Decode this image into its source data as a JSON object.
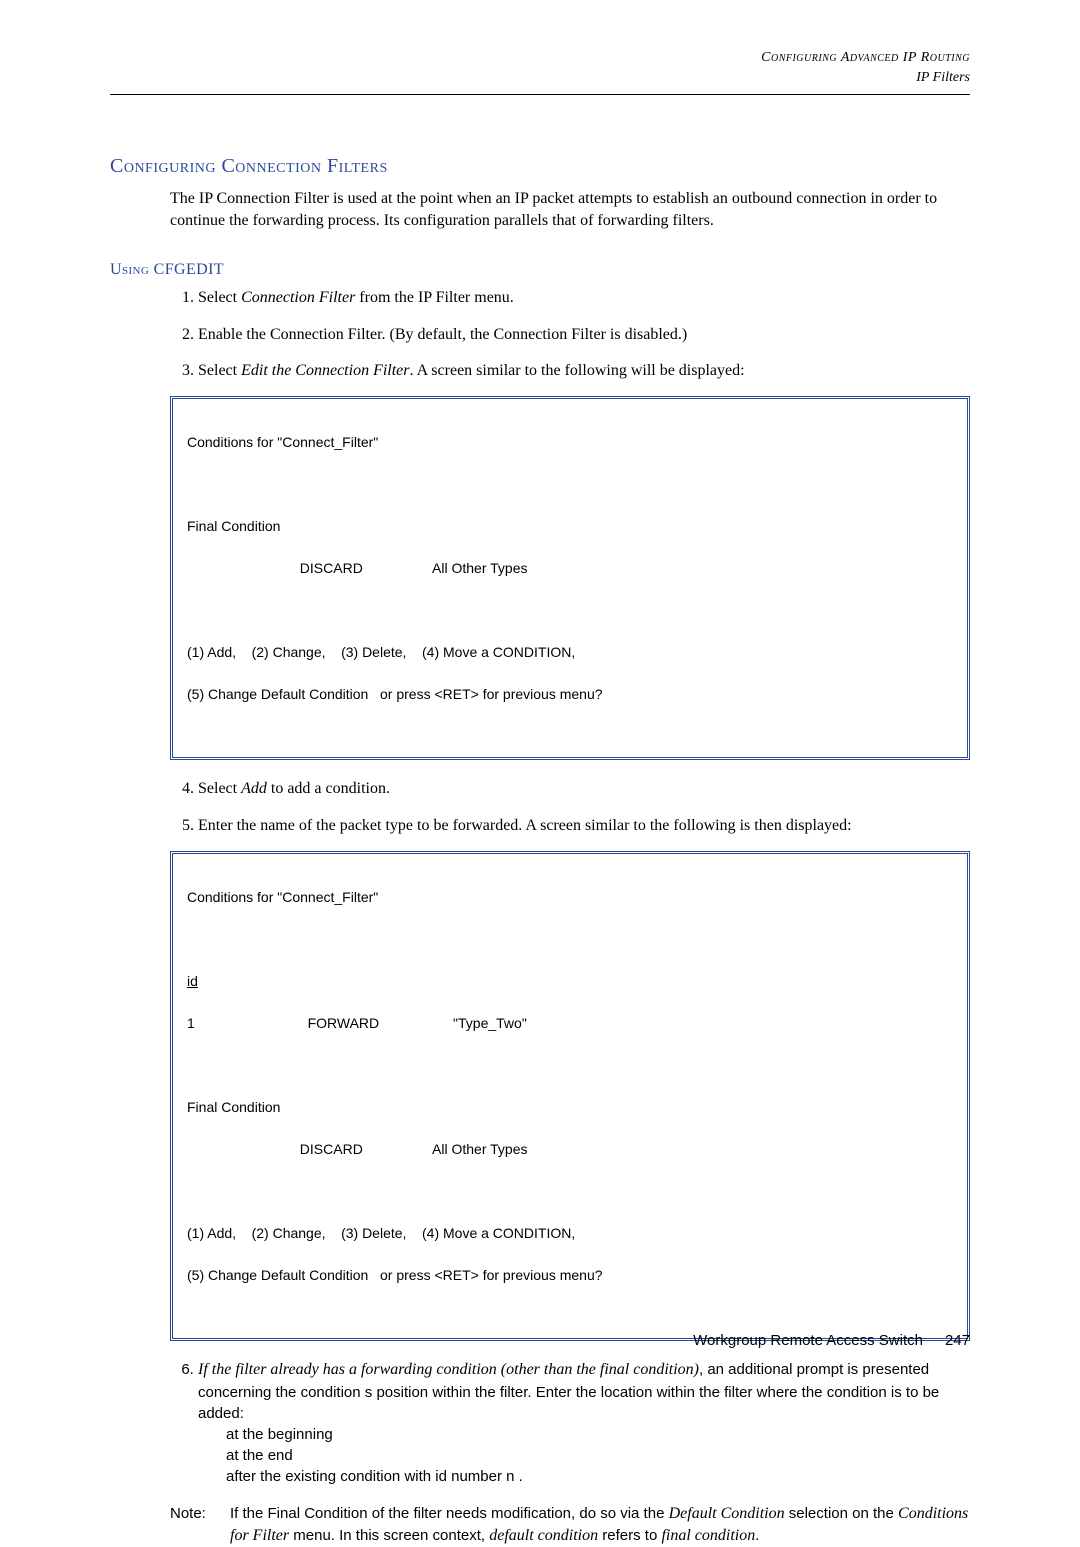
{
  "header": {
    "line1": "Configuring Advanced IP Routing",
    "line2": "IP Filters"
  },
  "section_title": "Configuring Connection Filters",
  "intro": "The IP Connection Filter is used at the point when an IP packet attempts to establish an outbound connection in order to continue the forwarding process. Its configuration parallels that of forwarding filters.",
  "subsection_title": "Using CFGEDIT",
  "steps": {
    "s1_pre": "Select ",
    "s1_it": "Connection Filter",
    "s1_post": " from the IP Filter menu.",
    "s2": "Enable the Connection Filter. (By default, the Connection Filter is disabled.)",
    "s3_pre": "Select ",
    "s3_it": "Edit the Connection Filter",
    "s3_post": ". A screen similar to the following will be displayed:",
    "s4_pre": "Select ",
    "s4_it": "Add",
    "s4_post": " to add a condition.",
    "s5": "Enter the name of the packet type to be forwarded. A screen similar to the following is then displayed:",
    "s6_lead": "If the filter already has a forwarding condition (other than the final condition)",
    "s6_rest1": ", an additional prompt is presented concerning the condition s position within the filter. Enter the location within the filter where the condition is to be added:",
    "s6_opt1": "at the beginning",
    "s6_opt2": "at the end",
    "s6_opt3": "after the existing condition with id number  n ."
  },
  "terminal1": {
    "title": "Conditions for \"Connect_Filter\"",
    "final_label": "Final Condition",
    "final_row": "                             DISCARD                  All Other Types",
    "menu1": "(1) Add,    (2) Change,    (3) Delete,    (4) Move a CONDITION,",
    "menu2": "(5) Change Default Condition   or press <RET> for previous menu?"
  },
  "terminal2": {
    "title": "Conditions for \"Connect_Filter\"",
    "id_hdr": "id",
    "row1": "1                             FORWARD                   \"Type_Two\"",
    "final_label": "Final Condition",
    "final_row": "                             DISCARD                  All Other Types",
    "menu1": "(1) Add,    (2) Change,    (3) Delete,    (4) Move a CONDITION,",
    "menu2": "(5) Change Default Condition   or press <RET> for previous menu?"
  },
  "note": {
    "label": "Note:",
    "part1": "If the Final Condition of the filter needs modification, do so via the ",
    "it1": "Default Condition",
    "part2": " selection on the ",
    "it2": "Conditions for Filter",
    "part3": " menu. In this screen context, ",
    "it3": "default condition",
    "part4": " refers to ",
    "it4": "final condition",
    "part5": "."
  },
  "footer": {
    "text": "Workgroup Remote Access Switch",
    "page": "247"
  }
}
